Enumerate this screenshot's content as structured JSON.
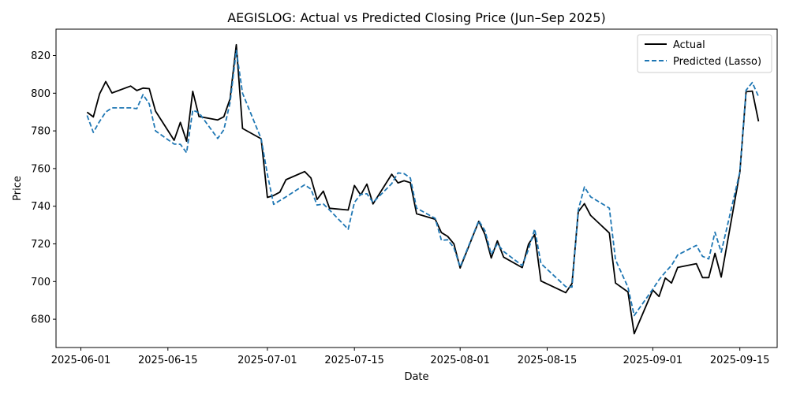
{
  "chart_data": {
    "type": "line",
    "title": "AEGISLOG: Actual vs Predicted Closing Price (Jun–Sep 2025)",
    "xlabel": "Date",
    "ylabel": "Price",
    "xlim": [
      "2025-05-28",
      "2025-09-21"
    ],
    "ylim": [
      665,
      834
    ],
    "x_ticks": [
      "2025-06-01",
      "2025-06-15",
      "2025-07-01",
      "2025-07-15",
      "2025-08-01",
      "2025-08-15",
      "2025-09-01",
      "2025-09-15"
    ],
    "y_ticks": [
      680,
      700,
      720,
      740,
      760,
      780,
      800,
      820
    ],
    "grid": false,
    "legend": "top-right",
    "x": [
      "2025-06-02",
      "2025-06-03",
      "2025-06-04",
      "2025-06-05",
      "2025-06-06",
      "2025-06-09",
      "2025-06-10",
      "2025-06-11",
      "2025-06-12",
      "2025-06-13",
      "2025-06-16",
      "2025-06-17",
      "2025-06-18",
      "2025-06-19",
      "2025-06-20",
      "2025-06-23",
      "2025-06-24",
      "2025-06-25",
      "2025-06-26",
      "2025-06-27",
      "2025-06-30",
      "2025-07-01",
      "2025-07-02",
      "2025-07-03",
      "2025-07-04",
      "2025-07-07",
      "2025-07-08",
      "2025-07-09",
      "2025-07-10",
      "2025-07-11",
      "2025-07-14",
      "2025-07-15",
      "2025-07-16",
      "2025-07-17",
      "2025-07-18",
      "2025-07-21",
      "2025-07-22",
      "2025-07-23",
      "2025-07-24",
      "2025-07-25",
      "2025-07-28",
      "2025-07-29",
      "2025-07-30",
      "2025-07-31",
      "2025-08-01",
      "2025-08-04",
      "2025-08-05",
      "2025-08-06",
      "2025-08-07",
      "2025-08-08",
      "2025-08-11",
      "2025-08-12",
      "2025-08-13",
      "2025-08-14",
      "2025-08-18",
      "2025-08-19",
      "2025-08-20",
      "2025-08-21",
      "2025-08-22",
      "2025-08-25",
      "2025-08-26",
      "2025-08-28",
      "2025-08-29",
      "2025-09-01",
      "2025-09-02",
      "2025-09-03",
      "2025-09-04",
      "2025-09-05",
      "2025-09-08",
      "2025-09-09",
      "2025-09-10",
      "2025-09-11",
      "2025-09-12",
      "2025-09-15",
      "2025-09-16",
      "2025-09-17",
      "2025-09-18"
    ],
    "series": [
      {
        "name": "Actual",
        "color": "#000000",
        "style": "solid",
        "values": [
          789.9,
          787.4,
          799.6,
          806.2,
          800.1,
          803.8,
          801.4,
          802.7,
          802.4,
          790.5,
          775.0,
          784.5,
          774.5,
          801.0,
          787.6,
          785.8,
          787.5,
          797.0,
          825.7,
          781.3,
          775.8,
          744.7,
          745.7,
          747.5,
          754.1,
          758.4,
          755.0,
          743.6,
          748.0,
          738.9,
          738.0,
          751.0,
          746.0,
          751.7,
          741.2,
          757.0,
          752.4,
          753.5,
          752.5,
          736.0,
          733.1,
          726.0,
          724.0,
          720.0,
          707.2,
          732.0,
          725.0,
          712.5,
          721.6,
          713.0,
          707.4,
          719.8,
          725.0,
          700.3,
          694.1,
          699.0,
          737.0,
          741.4,
          735.1,
          725.8,
          699.2,
          694.5,
          672.3,
          695.5,
          692.1,
          701.9,
          699.2,
          707.5,
          709.5,
          702.1,
          702.1,
          715.0,
          702.4,
          758.0,
          800.8,
          801.1,
          785.0
        ]
      },
      {
        "name": "Predicted (Lasso)",
        "color": "#1f77b4",
        "style": "dashed",
        "values": [
          788.2,
          779.2,
          785.0,
          790.0,
          792.2,
          792.2,
          791.8,
          799.3,
          794.3,
          780.0,
          773.0,
          772.9,
          768.4,
          791.0,
          789.6,
          776.0,
          780.6,
          795.0,
          822.7,
          800.0,
          775.8,
          756.9,
          741.0,
          743.0,
          745.0,
          751.4,
          749.1,
          740.6,
          741.2,
          738.0,
          727.8,
          742.0,
          746.3,
          746.6,
          742.0,
          752.0,
          757.7,
          757.3,
          755.0,
          739.0,
          733.5,
          721.9,
          722.2,
          718.0,
          707.8,
          732.3,
          727.0,
          714.5,
          720.0,
          716.0,
          708.5,
          717.0,
          727.9,
          709.6,
          697.3,
          697.1,
          738.0,
          750.2,
          745.0,
          739.0,
          711.6,
          697.0,
          682.0,
          696.0,
          701.0,
          705.0,
          708.6,
          714.1,
          719.2,
          713.4,
          712.0,
          726.2,
          715.6,
          758.2,
          801.6,
          805.7,
          798.2
        ]
      }
    ]
  }
}
